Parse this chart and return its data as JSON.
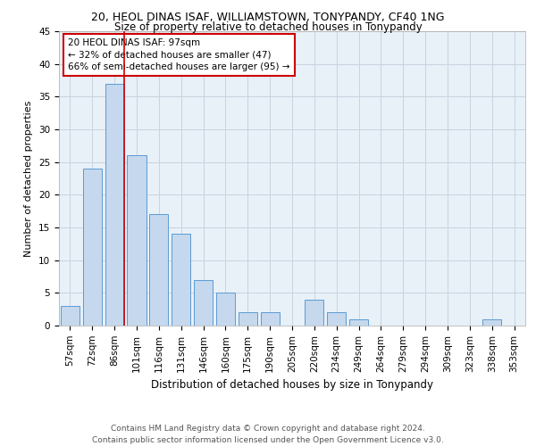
{
  "title1": "20, HEOL DINAS ISAF, WILLIAMSTOWN, TONYPANDY, CF40 1NG",
  "title2": "Size of property relative to detached houses in Tonypandy",
  "xlabel": "Distribution of detached houses by size in Tonypandy",
  "ylabel": "Number of detached properties",
  "categories": [
    "57sqm",
    "72sqm",
    "86sqm",
    "101sqm",
    "116sqm",
    "131sqm",
    "146sqm",
    "160sqm",
    "175sqm",
    "190sqm",
    "205sqm",
    "220sqm",
    "234sqm",
    "249sqm",
    "264sqm",
    "279sqm",
    "294sqm",
    "309sqm",
    "323sqm",
    "338sqm",
    "353sqm"
  ],
  "values": [
    3,
    24,
    37,
    26,
    17,
    14,
    7,
    5,
    2,
    2,
    0,
    4,
    2,
    1,
    0,
    0,
    0,
    0,
    0,
    1,
    0
  ],
  "bar_color": "#c5d8ed",
  "bar_edge_color": "#5b9bd5",
  "vline_color": "#cc0000",
  "annotation_line1": "20 HEOL DINAS ISAF: 97sqm",
  "annotation_line2": "← 32% of detached houses are smaller (47)",
  "annotation_line3": "66% of semi-detached houses are larger (95) →",
  "annotation_box_color": "#cc0000",
  "ylim": [
    0,
    45
  ],
  "yticks": [
    0,
    5,
    10,
    15,
    20,
    25,
    30,
    35,
    40,
    45
  ],
  "grid_color": "#c8d4e0",
  "bg_color": "#e8f0f8",
  "footer1": "Contains HM Land Registry data © Crown copyright and database right 2024.",
  "footer2": "Contains public sector information licensed under the Open Government Licence v3.0.",
  "title1_fontsize": 9,
  "title2_fontsize": 8.5,
  "xlabel_fontsize": 8.5,
  "ylabel_fontsize": 8,
  "tick_fontsize": 7.5,
  "annot_fontsize": 7.5,
  "footer_fontsize": 6.5
}
